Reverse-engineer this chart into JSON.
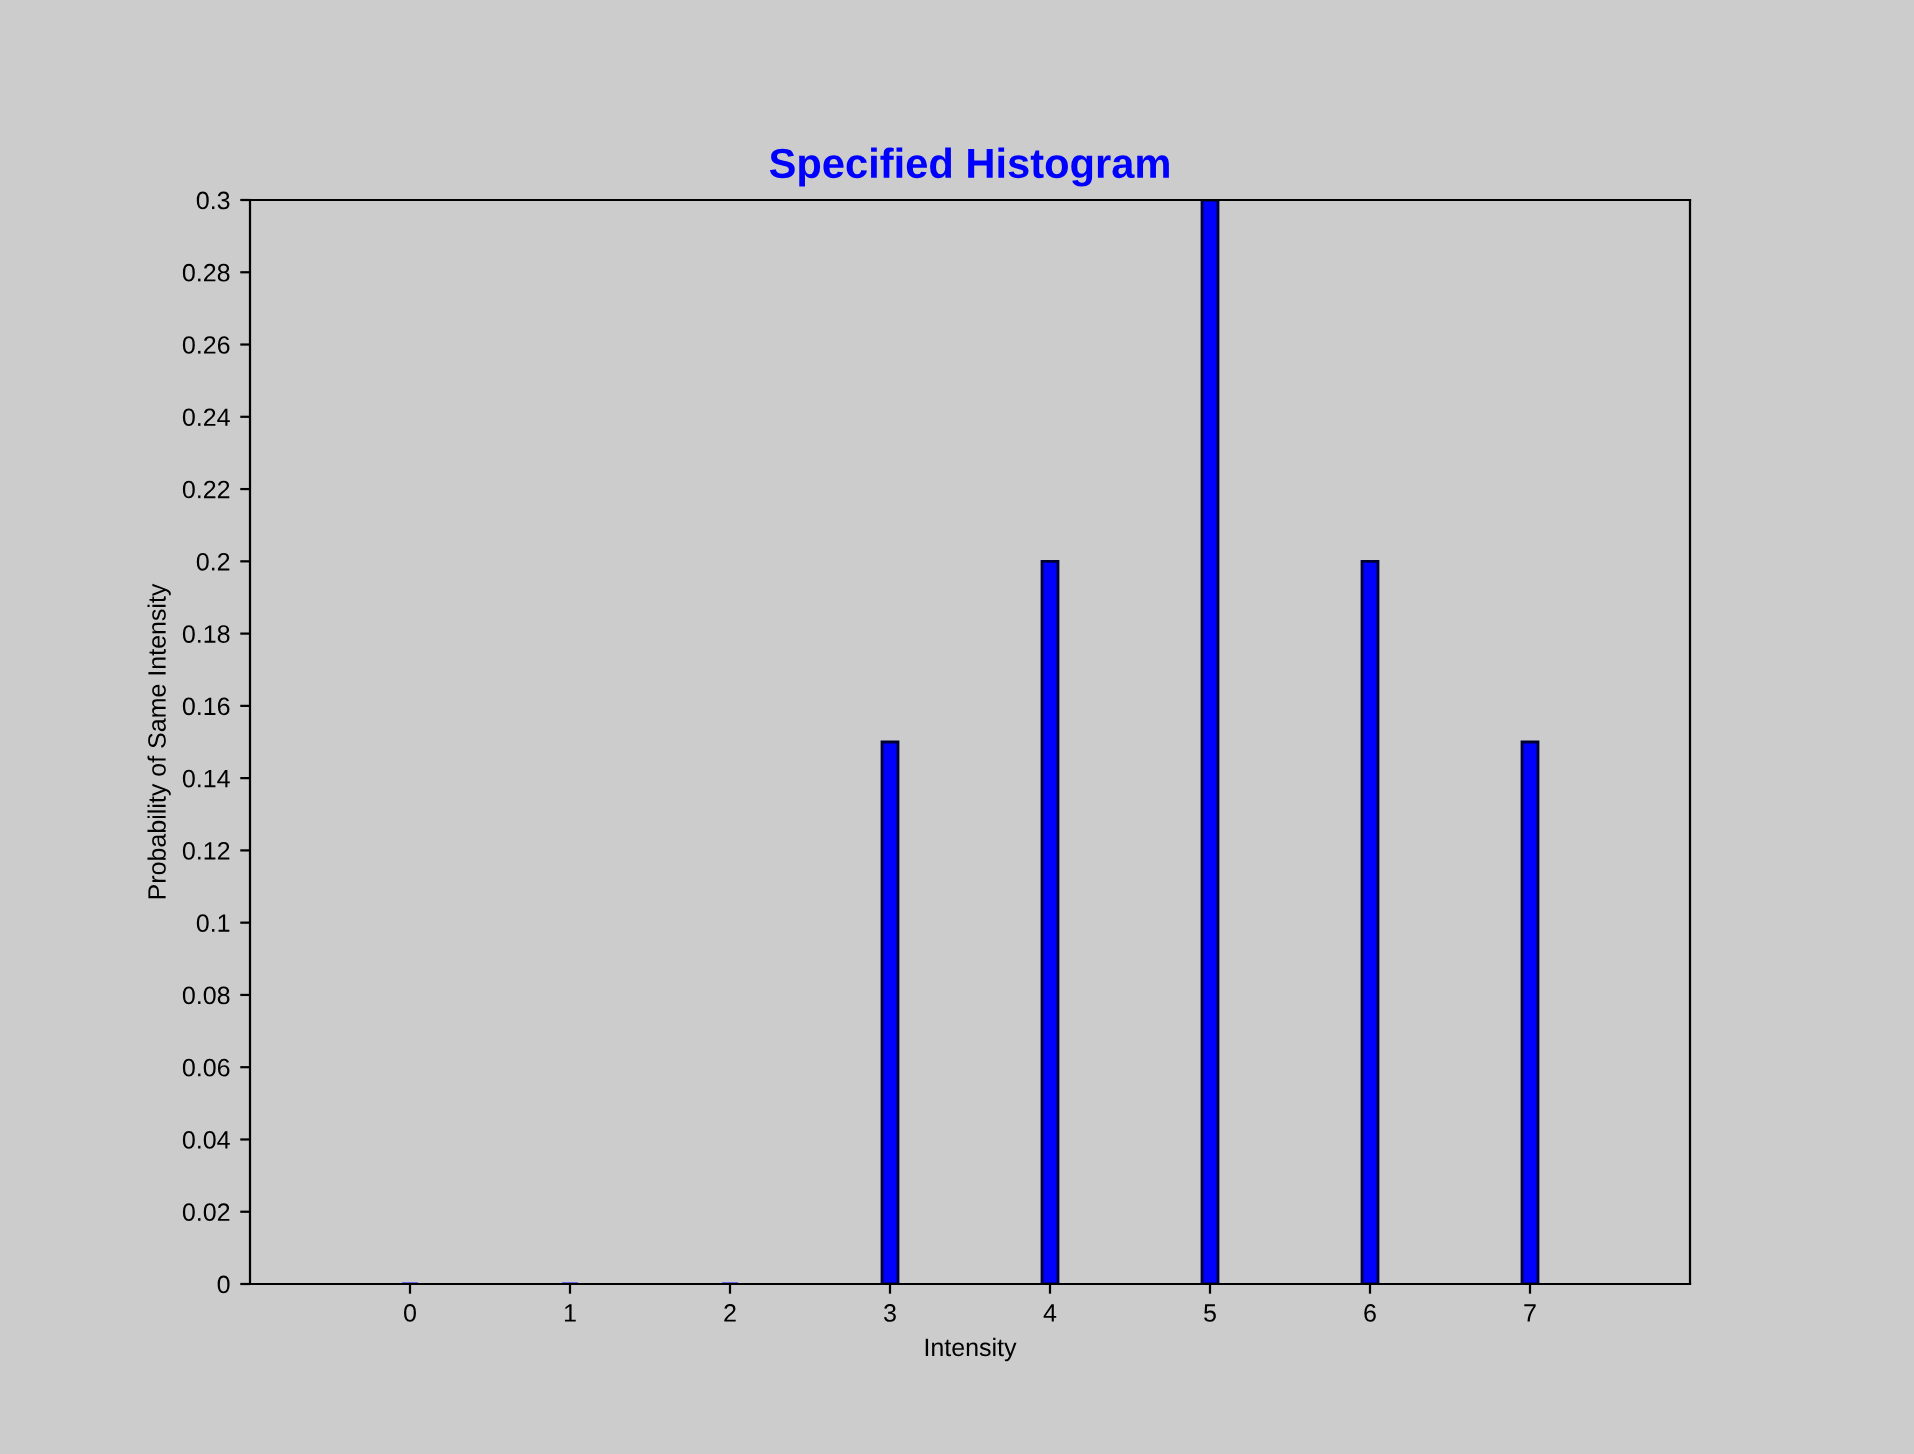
{
  "chart_data": {
    "type": "bar",
    "title": "Specified Histogram",
    "xlabel": "Intensity",
    "ylabel": "Probability of Same Intensity",
    "x": [
      0,
      1,
      2,
      3,
      4,
      5,
      6,
      7
    ],
    "values": [
      0,
      0,
      0,
      0.15,
      0.2,
      0.3,
      0.2,
      0.15
    ],
    "color": "#0000ff",
    "xlim": [
      -1,
      8
    ],
    "xticks": [
      0,
      1,
      2,
      3,
      4,
      5,
      6,
      7
    ],
    "ylim": [
      0,
      0.3
    ],
    "yticks": [
      0,
      0.02,
      0.04,
      0.06,
      0.08,
      0.1,
      0.12,
      0.14,
      0.16,
      0.18,
      0.2,
      0.22,
      0.24,
      0.26,
      0.28,
      0.3
    ],
    "grid": false,
    "legend": false
  }
}
